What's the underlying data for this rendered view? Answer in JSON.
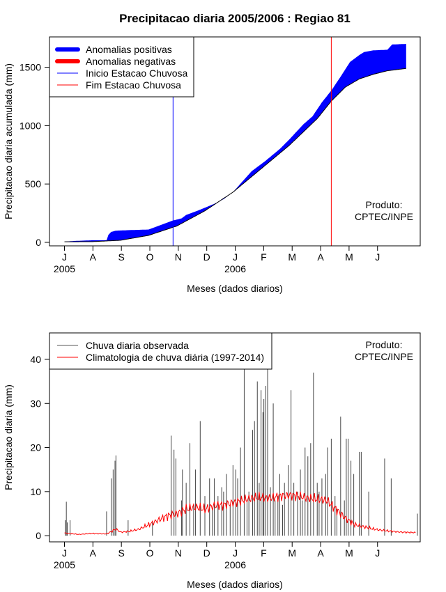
{
  "figure": {
    "title": "Precipitacao diaria 2005/2006 : Regiao 81"
  },
  "chart_data": [
    {
      "type": "area",
      "ylabel": "Precipitacao diaria acumulada (mm)",
      "xlabel": "Meses (dados diarios)",
      "x_tick_labels": [
        "J",
        "A",
        "S",
        "O",
        "N",
        "D",
        "J",
        "F",
        "M",
        "A",
        "M",
        "J"
      ],
      "x_year_labels": [
        {
          "month_index": 0,
          "label": "2005"
        },
        {
          "month_index": 6,
          "label": "2006"
        }
      ],
      "y_ticks": [
        0,
        500,
        1000,
        1500
      ],
      "ylim": [
        -30,
        1760
      ],
      "xlim_days": [
        -16,
        380
      ],
      "grid": false,
      "legend_position": "top-left",
      "legend": [
        {
          "label": "Anomalias positivas",
          "color": "#0000ff",
          "kind": "thick"
        },
        {
          "label": "Anomalias negativas",
          "color": "#ff0000",
          "kind": "thick"
        },
        {
          "label": "Inicio Estacao Chuvosa",
          "color": "#0000ff",
          "kind": "thin"
        },
        {
          "label": "Fim Estacao Chuvosa",
          "color": "#ff0000",
          "kind": "thin"
        }
      ],
      "annotation": [
        "Produto:",
        "CPTEC/INPE"
      ],
      "season_start_day": 116,
      "season_end_day": 285,
      "observed_accum": [
        [
          0,
          5
        ],
        [
          10,
          12
        ],
        [
          30,
          18
        ],
        [
          45,
          18
        ],
        [
          47,
          65
        ],
        [
          50,
          90
        ],
        [
          55,
          100
        ],
        [
          70,
          105
        ],
        [
          90,
          110
        ],
        [
          100,
          140
        ],
        [
          115,
          185
        ],
        [
          125,
          205
        ],
        [
          130,
          235
        ],
        [
          145,
          280
        ],
        [
          160,
          330
        ],
        [
          170,
          370
        ],
        [
          180,
          430
        ],
        [
          190,
          520
        ],
        [
          200,
          610
        ],
        [
          215,
          700
        ],
        [
          230,
          800
        ],
        [
          240,
          880
        ],
        [
          255,
          1010
        ],
        [
          265,
          1080
        ],
        [
          275,
          1200
        ],
        [
          285,
          1300
        ],
        [
          295,
          1420
        ],
        [
          305,
          1545
        ],
        [
          315,
          1605
        ],
        [
          320,
          1630
        ],
        [
          330,
          1645
        ],
        [
          345,
          1650
        ],
        [
          350,
          1695
        ],
        [
          365,
          1700
        ]
      ],
      "climatology_accum": [
        [
          0,
          5
        ],
        [
          30,
          6
        ],
        [
          60,
          18
        ],
        [
          90,
          60
        ],
        [
          120,
          140
        ],
        [
          150,
          270
        ],
        [
          180,
          430
        ],
        [
          210,
          630
        ],
        [
          240,
          830
        ],
        [
          270,
          1060
        ],
        [
          285,
          1210
        ],
        [
          300,
          1330
        ],
        [
          315,
          1400
        ],
        [
          330,
          1440
        ],
        [
          345,
          1470
        ],
        [
          365,
          1490
        ]
      ]
    },
    {
      "type": "bar+line",
      "ylabel": "Precipitacao diaria (mm)",
      "xlabel": "Meses (dados diarios)",
      "x_tick_labels": [
        "J",
        "A",
        "S",
        "O",
        "N",
        "D",
        "J",
        "F",
        "M",
        "A",
        "M",
        "J"
      ],
      "x_year_labels": [
        {
          "month_index": 0,
          "label": "2005"
        },
        {
          "month_index": 6,
          "label": "2006"
        }
      ],
      "y_ticks": [
        0,
        10,
        20,
        30,
        40
      ],
      "ylim": [
        -1.4,
        46
      ],
      "xlim_days": [
        -16,
        380
      ],
      "grid": false,
      "legend_position": "top-left",
      "legend": [
        {
          "label": "Chuva diaria observada",
          "color": "#555555"
        },
        {
          "label": "Climatologia de chuva diária (1997-2014)",
          "color": "#ff0000"
        }
      ],
      "annotation": [
        "Produto:",
        "CPTEC/INPE"
      ],
      "observed_daily": [
        [
          1,
          3.5
        ],
        [
          2,
          7.7
        ],
        [
          3,
          3
        ],
        [
          6,
          3.5
        ],
        [
          45,
          5.5
        ],
        [
          50,
          13
        ],
        [
          52,
          15
        ],
        [
          54,
          17
        ],
        [
          55,
          18.2
        ],
        [
          68,
          3.5
        ],
        [
          94,
          3
        ],
        [
          114,
          22.7
        ],
        [
          117,
          19.5
        ],
        [
          119,
          17.5
        ],
        [
          125,
          8
        ],
        [
          126,
          15
        ],
        [
          130,
          12
        ],
        [
          134,
          21
        ],
        [
          138,
          7
        ],
        [
          140,
          15
        ],
        [
          145,
          26
        ],
        [
          150,
          9
        ],
        [
          155,
          13
        ],
        [
          158,
          6
        ],
        [
          160,
          13
        ],
        [
          164,
          9
        ],
        [
          168,
          11
        ],
        [
          170,
          10
        ],
        [
          173,
          14
        ],
        [
          177,
          7
        ],
        [
          180,
          16
        ],
        [
          183,
          15
        ],
        [
          185,
          13
        ],
        [
          188,
          20
        ],
        [
          192,
          39
        ],
        [
          195,
          8
        ],
        [
          197,
          10
        ],
        [
          201,
          24
        ],
        [
          203,
          26
        ],
        [
          206,
          35
        ],
        [
          208,
          12
        ],
        [
          210,
          33
        ],
        [
          212,
          28
        ],
        [
          213,
          31
        ],
        [
          215,
          34
        ],
        [
          217,
          44
        ],
        [
          220,
          11
        ],
        [
          223,
          30
        ],
        [
          225,
          8
        ],
        [
          228,
          9
        ],
        [
          230,
          14
        ],
        [
          233,
          7
        ],
        [
          235,
          12
        ],
        [
          239,
          16
        ],
        [
          242,
          33
        ],
        [
          245,
          12
        ],
        [
          249,
          10
        ],
        [
          252,
          15
        ],
        [
          254,
          8
        ],
        [
          257,
          20
        ],
        [
          260,
          18
        ],
        [
          263,
          21
        ],
        [
          266,
          37
        ],
        [
          270,
          12
        ],
        [
          272,
          10
        ],
        [
          275,
          13
        ],
        [
          279,
          14
        ],
        [
          281,
          20
        ],
        [
          285,
          22
        ],
        [
          289,
          9
        ],
        [
          291,
          6
        ],
        [
          295,
          27
        ],
        [
          299,
          8
        ],
        [
          301,
          22
        ],
        [
          303,
          22
        ],
        [
          306,
          17
        ],
        [
          309,
          14
        ],
        [
          315,
          19
        ],
        [
          317,
          19
        ],
        [
          325,
          10
        ],
        [
          342,
          17.5
        ],
        [
          349,
          13
        ],
        [
          377,
          5
        ]
      ],
      "climatology_daily": [
        [
          0,
          0.6
        ],
        [
          15,
          0.3
        ],
        [
          30,
          0.5
        ],
        [
          45,
          0.4
        ],
        [
          55,
          1.5
        ],
        [
          60,
          0.8
        ],
        [
          70,
          1.0
        ],
        [
          80,
          1.5
        ],
        [
          90,
          2.5
        ],
        [
          100,
          3.5
        ],
        [
          110,
          4.5
        ],
        [
          120,
          5.0
        ],
        [
          130,
          6.0
        ],
        [
          140,
          6.5
        ],
        [
          150,
          6.0
        ],
        [
          160,
          6.8
        ],
        [
          170,
          7.0
        ],
        [
          180,
          7.5
        ],
        [
          190,
          8.0
        ],
        [
          200,
          8.5
        ],
        [
          210,
          8.7
        ],
        [
          220,
          8.5
        ],
        [
          230,
          9.0
        ],
        [
          240,
          9.2
        ],
        [
          250,
          9.0
        ],
        [
          260,
          8.5
        ],
        [
          270,
          8.3
        ],
        [
          280,
          8.0
        ],
        [
          290,
          6.0
        ],
        [
          300,
          4.0
        ],
        [
          310,
          2.5
        ],
        [
          320,
          2.0
        ],
        [
          330,
          1.5
        ],
        [
          340,
          1.2
        ],
        [
          350,
          1.0
        ],
        [
          360,
          0.8
        ],
        [
          375,
          0.7
        ]
      ]
    }
  ]
}
